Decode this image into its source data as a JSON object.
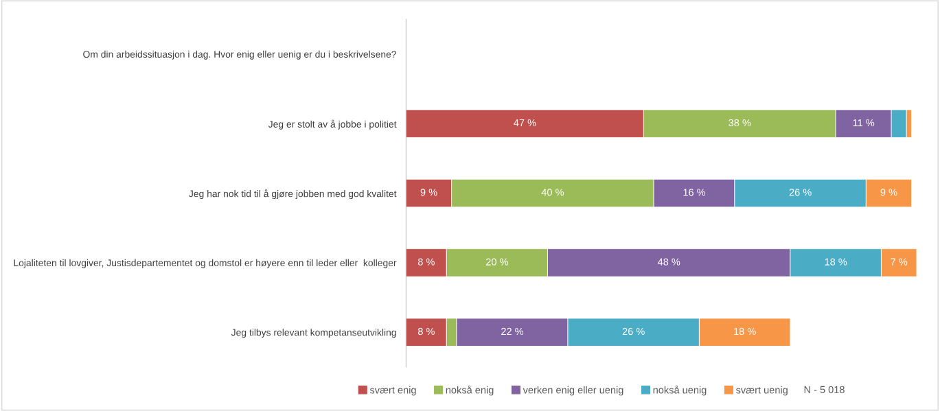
{
  "chart_data": {
    "type": "bar",
    "orientation": "horizontal",
    "stacked": true,
    "categories": [
      "Om din arbeidssituasjon i dag. Hvor enig eller uenig er du i beskrivelsene?",
      "Jeg er stolt av å jobbe i politiet",
      "Jeg har nok tid til å gjøre jobben med god kvalitet",
      "Lojaliteten til lovgiver, Justisdepartementet og domstol er høyere enn til leder eller  kolleger",
      "Jeg tilbys relevant kompetanseutvikling"
    ],
    "tick_labels": "y",
    "grid": false,
    "legend": "bottom",
    "series": [
      {
        "name": "svært enig",
        "color": "#c0504d",
        "values": [
          null,
          47,
          9,
          8,
          8
        ],
        "value_labels": [
          null,
          "47 %",
          "9 %",
          "8 %",
          "8 %"
        ]
      },
      {
        "name": "nokså enig",
        "color": "#9bbb59",
        "values": [
          null,
          38,
          40,
          20,
          2
        ],
        "value_labels": [
          null,
          "38 %",
          "40 %",
          "20 %",
          null
        ]
      },
      {
        "name": "verken enig eller uenig",
        "color": "#8064a2",
        "values": [
          null,
          11,
          16,
          48,
          22
        ],
        "value_labels": [
          null,
          "11 %",
          "16 %",
          "48 %",
          "22 %"
        ]
      },
      {
        "name": "nokså uenig",
        "color": "#4bacc6",
        "values": [
          null,
          3,
          26,
          18,
          26
        ],
        "value_labels": [
          null,
          null,
          "26 %",
          "18 %",
          "26 %"
        ]
      },
      {
        "name": "svært uenig",
        "color": "#f79646",
        "values": [
          null,
          1,
          9,
          7,
          18
        ],
        "value_labels": [
          null,
          null,
          "9 %",
          "7 %",
          "18 %"
        ]
      }
    ],
    "annotations": [
      "N - 5 018"
    ]
  }
}
